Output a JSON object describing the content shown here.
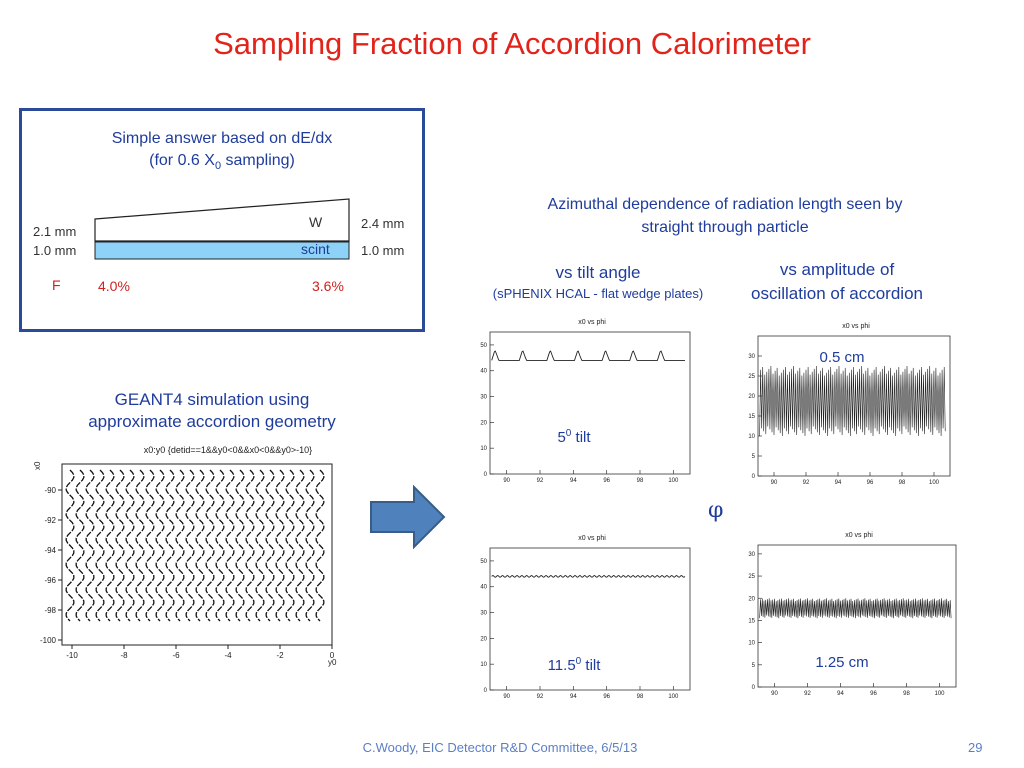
{
  "slide": {
    "title": "Sampling Fraction of Accordion Calorimeter",
    "footer": "C.Woody, EIC Detector R&D Committee,  6/5/13",
    "page_number": "29"
  },
  "box": {
    "line1": "Simple answer based on dE/dx",
    "line2_prefix": "(for 0.6 X",
    "line2_sub": "0",
    "line2_suffix": " sampling)",
    "left_top_dim": "2.1 mm",
    "left_bottom_dim": "1.0 mm",
    "right_top_dim": "2.4 mm",
    "right_bottom_dim": "1.0 mm",
    "w_label": "W",
    "scint_label": "scint",
    "f_label": "F",
    "f_left": "4.0%",
    "f_right": "3.6%"
  },
  "geant": {
    "line1": "GEANT4 simulation using",
    "line2": "approximate accordion geometry",
    "plot_title": "x0:y0 {detid==1&&y0<0&&x0<0&&y0>-10}",
    "x_label": "y0",
    "y_label": "x0",
    "x_ticks": [
      "-10",
      "-8",
      "-6",
      "-4",
      "-2",
      "0"
    ],
    "y_ticks": [
      "-90",
      "-92",
      "-94",
      "-96",
      "-98",
      "-100"
    ]
  },
  "azimuthal": {
    "line1": "Azimuthal dependence of radiation length seen by",
    "line2": "straight through particle"
  },
  "tilt": {
    "heading": "vs tilt angle",
    "subheading": "(sPHENIX HCAL - flat wedge plates)"
  },
  "amp": {
    "heading1": "vs amplitude of",
    "heading2": "oscillation of accordion"
  },
  "phi_symbol": "φ",
  "chart_data": [
    {
      "type": "line",
      "title": "x0 vs phi",
      "annotation": "5",
      "annotation_sup": "0",
      "annotation_suffix": " tilt",
      "xlim": [
        89,
        101
      ],
      "ylim": [
        0,
        55
      ],
      "x_ticks": [
        "90",
        "92",
        "94",
        "96",
        "98",
        "100"
      ],
      "y_ticks": [
        "0",
        "10",
        "20",
        "30",
        "40",
        "50"
      ],
      "baseline": 44,
      "peak": 48,
      "periods": 7
    },
    {
      "type": "line",
      "title": "x0 vs phi",
      "annotation": "11.5",
      "annotation_sup": "0",
      "annotation_suffix": " tilt",
      "xlim": [
        89,
        101
      ],
      "ylim": [
        0,
        55
      ],
      "x_ticks": [
        "90",
        "92",
        "94",
        "96",
        "98",
        "100"
      ],
      "y_ticks": [
        "0",
        "10",
        "20",
        "30",
        "40",
        "50"
      ],
      "baseline": 44,
      "peak": 44.3,
      "periods": 40
    },
    {
      "type": "line",
      "title": "x0 vs phi",
      "annotation": "0.5 cm",
      "xlim": [
        89,
        101
      ],
      "ylim": [
        0,
        35
      ],
      "x_ticks": [
        "90",
        "92",
        "94",
        "96",
        "98",
        "100"
      ],
      "y_ticks": [
        "0",
        "5",
        "10",
        "15",
        "20",
        "25",
        "30"
      ],
      "low": 10,
      "high": 27.5,
      "periods": 90
    },
    {
      "type": "line",
      "title": "x0 vs phi",
      "annotation": "1.25 cm",
      "xlim": [
        89,
        101
      ],
      "ylim": [
        0,
        32
      ],
      "x_ticks": [
        "90",
        "92",
        "94",
        "96",
        "98",
        "100"
      ],
      "y_ticks": [
        "0",
        "5",
        "10",
        "15",
        "20",
        "25",
        "30"
      ],
      "low": 15.5,
      "high": 20,
      "periods": 110
    }
  ],
  "colors": {
    "title": "#e2231a",
    "text": "#1f3c9c",
    "scint_fill": "#8ed3f7",
    "arrow_fill": "#4f81bd"
  }
}
